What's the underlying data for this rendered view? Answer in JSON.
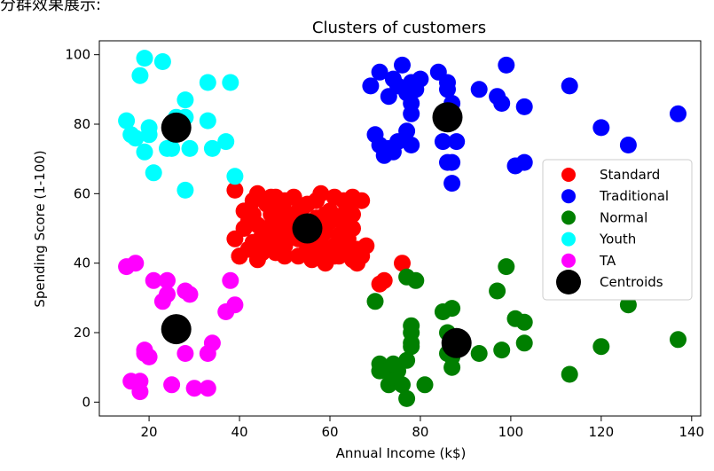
{
  "caption": "分群效果展示:",
  "chart_data": {
    "type": "scatter",
    "title": "Clusters of customers",
    "xlabel": "Annual Income (k$)",
    "ylabel": "Spending Score (1-100)",
    "xlim": [
      9,
      142
    ],
    "ylim": [
      -4,
      104
    ],
    "xticks": [
      "20",
      "40",
      "60",
      "80",
      "100",
      "120",
      "140"
    ],
    "yticks": [
      "0",
      "20",
      "40",
      "60",
      "80",
      "100"
    ],
    "grid": false,
    "legend_position": "center-right",
    "series": [
      {
        "name": "Standard",
        "color": "#ff0000",
        "points": [
          [
            39,
            61
          ],
          [
            41,
            55
          ],
          [
            43,
            58
          ],
          [
            44,
            60
          ],
          [
            46,
            57
          ],
          [
            47,
            59
          ],
          [
            48,
            59
          ],
          [
            49,
            56
          ],
          [
            50,
            58
          ],
          [
            52,
            59
          ],
          [
            54,
            56
          ],
          [
            55,
            57
          ],
          [
            57,
            58
          ],
          [
            58,
            60
          ],
          [
            60,
            55
          ],
          [
            61,
            59
          ],
          [
            63,
            58
          ],
          [
            64,
            56
          ],
          [
            65,
            59
          ],
          [
            67,
            58
          ],
          [
            39,
            47
          ],
          [
            40,
            42
          ],
          [
            41,
            50
          ],
          [
            42,
            52
          ],
          [
            43,
            46
          ],
          [
            44,
            51
          ],
          [
            45,
            43
          ],
          [
            46,
            50
          ],
          [
            47,
            54
          ],
          [
            48,
            48
          ],
          [
            49,
            52
          ],
          [
            50,
            45
          ],
          [
            51,
            49
          ],
          [
            52,
            53
          ],
          [
            53,
            47
          ],
          [
            54,
            51
          ],
          [
            55,
            44
          ],
          [
            56,
            50
          ],
          [
            57,
            53
          ],
          [
            58,
            46
          ],
          [
            59,
            49
          ],
          [
            60,
            52
          ],
          [
            61,
            45
          ],
          [
            62,
            48
          ],
          [
            63,
            51
          ],
          [
            64,
            47
          ],
          [
            65,
            50
          ],
          [
            66,
            44
          ],
          [
            67,
            42
          ],
          [
            40,
            42
          ],
          [
            42,
            44
          ],
          [
            44,
            41
          ],
          [
            46,
            45
          ],
          [
            48,
            43
          ],
          [
            50,
            42
          ],
          [
            53,
            42
          ],
          [
            56,
            41
          ],
          [
            59,
            40
          ],
          [
            61,
            42
          ],
          [
            63,
            43
          ],
          [
            65,
            41
          ],
          [
            66,
            40
          ],
          [
            68,
            45
          ],
          [
            72,
            35
          ],
          [
            76,
            40
          ],
          [
            71,
            34
          ],
          [
            43,
            54
          ],
          [
            45,
            48
          ],
          [
            47,
            47
          ],
          [
            49,
            55
          ],
          [
            51,
            54
          ],
          [
            53,
            55
          ],
          [
            55,
            52
          ],
          [
            57,
            47
          ],
          [
            59,
            54
          ],
          [
            61,
            53
          ],
          [
            63,
            54
          ],
          [
            65,
            54
          ],
          [
            62,
            42
          ],
          [
            58,
            43
          ]
        ]
      },
      {
        "name": "Traditional",
        "color": "#0000ff",
        "points": [
          [
            69,
            91
          ],
          [
            71,
            95
          ],
          [
            73,
            88
          ],
          [
            74,
            93
          ],
          [
            75,
            91
          ],
          [
            76,
            97
          ],
          [
            77,
            89
          ],
          [
            78,
            92
          ],
          [
            78,
            86
          ],
          [
            79,
            90
          ],
          [
            80,
            93
          ],
          [
            84,
            95
          ],
          [
            86,
            92
          ],
          [
            87,
            86
          ],
          [
            88,
            75
          ],
          [
            93,
            90
          ],
          [
            97,
            88
          ],
          [
            98,
            86
          ],
          [
            99,
            97
          ],
          [
            103,
            85
          ],
          [
            113,
            91
          ],
          [
            120,
            79
          ],
          [
            126,
            74
          ],
          [
            137,
            83
          ],
          [
            70,
            77
          ],
          [
            71,
            74
          ],
          [
            72,
            71
          ],
          [
            73,
            73
          ],
          [
            74,
            72
          ],
          [
            75,
            75
          ],
          [
            77,
            78
          ],
          [
            78,
            74
          ],
          [
            78,
            83
          ],
          [
            85,
            75
          ],
          [
            86,
            69
          ],
          [
            87,
            69
          ],
          [
            87,
            63
          ],
          [
            101,
            68
          ],
          [
            103,
            69
          ],
          [
            86,
            90
          ]
        ]
      },
      {
        "name": "Normal",
        "color": "#007f00",
        "points": [
          [
            70,
            29
          ],
          [
            71,
            11
          ],
          [
            71,
            9
          ],
          [
            72,
            10
          ],
          [
            73,
            5
          ],
          [
            74,
            7
          ],
          [
            75,
            9
          ],
          [
            76,
            5
          ],
          [
            77,
            1
          ],
          [
            77,
            12
          ],
          [
            78,
            22
          ],
          [
            78,
            17
          ],
          [
            78,
            20
          ],
          [
            78,
            16
          ],
          [
            79,
            35
          ],
          [
            81,
            5
          ],
          [
            85,
            26
          ],
          [
            86,
            20
          ],
          [
            86,
            14
          ],
          [
            87,
            27
          ],
          [
            87,
            13
          ],
          [
            87,
            10
          ],
          [
            88,
            15
          ],
          [
            93,
            14
          ],
          [
            97,
            32
          ],
          [
            98,
            15
          ],
          [
            99,
            39
          ],
          [
            101,
            24
          ],
          [
            103,
            23
          ],
          [
            103,
            17
          ],
          [
            113,
            8
          ],
          [
            120,
            16
          ],
          [
            126,
            28
          ],
          [
            137,
            18
          ],
          [
            77,
            36
          ],
          [
            71,
            9
          ],
          [
            74,
            11
          ]
        ]
      },
      {
        "name": "Youth",
        "color": "#00ffff",
        "points": [
          [
            15,
            81
          ],
          [
            16,
            77
          ],
          [
            17,
            76
          ],
          [
            18,
            94
          ],
          [
            19,
            72
          ],
          [
            19,
            99
          ],
          [
            20,
            77
          ],
          [
            20,
            79
          ],
          [
            21,
            66
          ],
          [
            23,
            98
          ],
          [
            24,
            73
          ],
          [
            25,
            73
          ],
          [
            28,
            82
          ],
          [
            28,
            61
          ],
          [
            28,
            87
          ],
          [
            29,
            73
          ],
          [
            33,
            81
          ],
          [
            33,
            92
          ],
          [
            34,
            73
          ],
          [
            37,
            75
          ],
          [
            38,
            92
          ],
          [
            39,
            65
          ],
          [
            26,
            82
          ]
        ]
      },
      {
        "name": "TA",
        "color": "#ff00ff",
        "points": [
          [
            15,
            39
          ],
          [
            16,
            6
          ],
          [
            17,
            40
          ],
          [
            18,
            3
          ],
          [
            18,
            6
          ],
          [
            19,
            14
          ],
          [
            19,
            15
          ],
          [
            20,
            13
          ],
          [
            21,
            35
          ],
          [
            23,
            29
          ],
          [
            24,
            35
          ],
          [
            24,
            31
          ],
          [
            25,
            5
          ],
          [
            28,
            14
          ],
          [
            28,
            32
          ],
          [
            29,
            31
          ],
          [
            30,
            4
          ],
          [
            33,
            14
          ],
          [
            33,
            4
          ],
          [
            34,
            17
          ],
          [
            37,
            26
          ],
          [
            38,
            35
          ],
          [
            39,
            28
          ]
        ]
      },
      {
        "name": "Centroids",
        "color": "#000000",
        "points": [
          [
            55,
            50
          ],
          [
            86,
            82
          ],
          [
            26,
            79
          ],
          [
            88,
            17
          ],
          [
            26,
            21
          ]
        ]
      }
    ]
  }
}
